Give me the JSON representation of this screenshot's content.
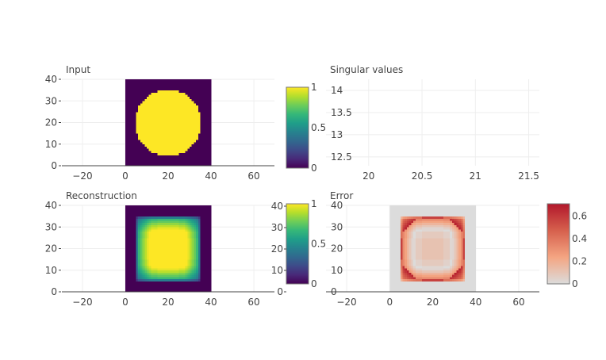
{
  "chart_data": [
    {
      "type": "heatmap",
      "title": "Input",
      "grid_size": 40,
      "content": "binary disc, value 1 inside radius 15 around (20,20), 0 elsewhere",
      "xlim": [
        -29.6,
        69.6
      ],
      "ylim": [
        0,
        40
      ],
      "xticks": [
        "−20",
        "0",
        "20",
        "40",
        "60"
      ],
      "xtick_values": [
        -20,
        0,
        20,
        40,
        60
      ],
      "yticks": [
        "0",
        "10",
        "20",
        "30",
        "40"
      ],
      "ytick_values": [
        0,
        10,
        20,
        30,
        40
      ],
      "colorscale": "Viridis",
      "colorbar": {
        "range": [
          0,
          1
        ],
        "ticks": [
          "0",
          "0.5",
          "1"
        ],
        "tick_values": [
          0,
          0.5,
          1
        ]
      }
    },
    {
      "type": "line",
      "title": "Singular values",
      "xlim": [
        19.6,
        21.6
      ],
      "ylim": [
        12.3,
        14.25
      ],
      "xticks": [
        "20",
        "20.5",
        "21",
        "21.5"
      ],
      "xtick_values": [
        20,
        20.5,
        21,
        21.5
      ],
      "yticks": [
        "12.5",
        "13",
        "13.5",
        "14"
      ],
      "ytick_values": [
        12.5,
        13,
        13.5,
        14
      ],
      "grid": true,
      "series": []
    },
    {
      "type": "heatmap",
      "title": "Reconstruction",
      "content": "rank-1 SVD approximation of Input",
      "xlim": [
        -29.6,
        69.6
      ],
      "ylim": [
        0,
        40
      ],
      "xticks": [
        "−20",
        "0",
        "20",
        "40",
        "60"
      ],
      "xtick_values": [
        -20,
        0,
        20,
        40,
        60
      ],
      "yticks": [
        "0",
        "10",
        "20",
        "30",
        "40"
      ],
      "ytick_values": [
        0,
        10,
        20,
        30,
        40
      ],
      "colorscale": "Viridis",
      "colorbar": {
        "range": [
          0,
          1
        ],
        "ticks": [
          "0",
          "0.5",
          "1"
        ],
        "tick_values": [
          0,
          0.5,
          1
        ]
      }
    },
    {
      "type": "heatmap",
      "title": "Error",
      "content": "absolute difference between Input and Reconstruction",
      "xlim": [
        -29.6,
        69.6
      ],
      "ylim": [
        0,
        40
      ],
      "xticks": [
        "−20",
        "0",
        "20",
        "40",
        "60"
      ],
      "xtick_values": [
        -20,
        0,
        20,
        40,
        60
      ],
      "yticks": [
        "0",
        "10",
        "20",
        "30",
        "40"
      ],
      "ytick_values": [
        0,
        10,
        20,
        30,
        40
      ],
      "colorscale": [
        "#dcdcdc",
        "#f4a582",
        "#d6604d",
        "#b2182b"
      ],
      "colorbar": {
        "range": [
          0,
          0.71
        ],
        "ticks": [
          "0",
          "0.2",
          "0.4",
          "0.6"
        ],
        "tick_values": [
          0,
          0.2,
          0.4,
          0.6
        ]
      }
    }
  ],
  "stray_colorbar": {
    "ticks": [
      "0",
      "10",
      "20",
      "30",
      "40"
    ],
    "tick_values": [
      0,
      10,
      20,
      30,
      40
    ]
  }
}
